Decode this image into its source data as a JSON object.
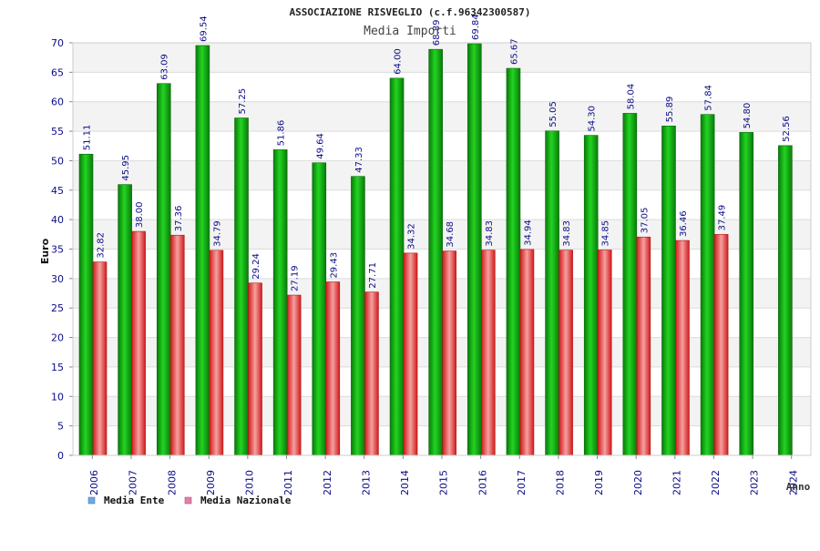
{
  "chart_data": {
    "type": "bar",
    "title": "ASSOCIAZIONE RISVEGLIO (c.f.96342300587)",
    "subtitle": "Media Importi",
    "ylabel": "Euro",
    "xlabel": "Anno",
    "ylim": [
      0,
      70
    ],
    "yticks": [
      0,
      5,
      10,
      15,
      20,
      25,
      30,
      35,
      40,
      45,
      50,
      55,
      60,
      65,
      70
    ],
    "categories": [
      "2006",
      "2007",
      "2008",
      "2009",
      "2010",
      "2011",
      "2012",
      "2013",
      "2014",
      "2015",
      "2016",
      "2017",
      "2018",
      "2019",
      "2020",
      "2021",
      "2022",
      "2023",
      "2024"
    ],
    "series": [
      {
        "name": "Media Ente",
        "color": "#1bb51b",
        "values": [
          51.11,
          45.95,
          63.09,
          69.54,
          57.25,
          51.86,
          49.64,
          47.33,
          64.0,
          68.89,
          69.84,
          65.67,
          55.05,
          54.3,
          58.04,
          55.89,
          57.84,
          54.8,
          52.56
        ],
        "labels": [
          "51.11",
          "45.95",
          "63.09",
          "69.54",
          "57.25",
          "51.86",
          "49.64",
          "47.33",
          "64.00",
          "68.89",
          "69.84",
          "65.67",
          "55.05",
          "54.30",
          "58.04",
          "55.89",
          "57.84",
          "54.80",
          "52.56"
        ]
      },
      {
        "name": "Media Nazionale",
        "color": "#e83a3a",
        "values": [
          32.82,
          38.0,
          37.36,
          34.79,
          29.24,
          27.19,
          29.43,
          27.71,
          34.32,
          34.68,
          34.83,
          34.94,
          34.83,
          34.85,
          37.05,
          36.46,
          37.49,
          null,
          null
        ],
        "labels": [
          "32.82",
          "38.00",
          "37.36",
          "34.79",
          "29.24",
          "27.19",
          "29.43",
          "27.71",
          "34.32",
          "34.68",
          "34.83",
          "34.94",
          "34.83",
          "34.85",
          "37.05",
          "36.46",
          "37.49",
          "",
          ""
        ]
      }
    ],
    "legend": [
      {
        "name": "Media Ente",
        "color": "#6fa8e6"
      },
      {
        "name": "Media Nazionale",
        "color": "#e67fa8"
      }
    ],
    "legend_position": "bottom-left",
    "grid": true
  }
}
